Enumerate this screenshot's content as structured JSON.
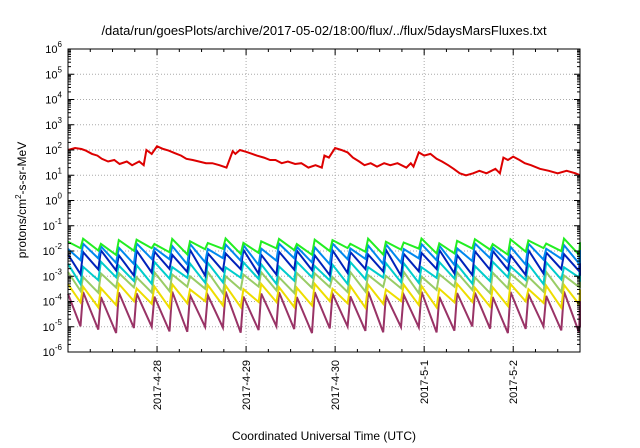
{
  "chart_data": {
    "type": "line",
    "title": "/data/run/goesPlots/archive/2017-05-02/18:00/flux/../flux/5daysMarsFluxes.txt",
    "xlabel": "Coordinated Universal Time (UTC)",
    "ylabel_parts": [
      "protons/cm",
      "2",
      "-s-sr-MeV"
    ],
    "yscale": "log",
    "ylim": [
      1e-06,
      1000000.0
    ],
    "xlim": [
      "2017-04-27 00:00",
      "2017-05-02 18:00"
    ],
    "x_ticks": [
      "2017-4-28",
      "2017-4-29",
      "2017-4-30",
      "2017-5-1",
      "2017-5-2"
    ],
    "y_ticks": [
      {
        "base": "10",
        "exp": "-6"
      },
      {
        "base": "10",
        "exp": "-5"
      },
      {
        "base": "10",
        "exp": "-4"
      },
      {
        "base": "10",
        "exp": "-3"
      },
      {
        "base": "10",
        "exp": "-2"
      },
      {
        "base": "10",
        "exp": "-1"
      },
      {
        "base": "10",
        "exp": "0"
      },
      {
        "base": "10",
        "exp": "1"
      },
      {
        "base": "10",
        "exp": "2"
      },
      {
        "base": "10",
        "exp": "3"
      },
      {
        "base": "10",
        "exp": "4"
      },
      {
        "base": "10",
        "exp": "5"
      },
      {
        "base": "10",
        "exp": "6"
      }
    ],
    "grid": true,
    "series": [
      {
        "color": "#dd0000",
        "x": [
          0,
          0.08,
          0.15,
          0.2,
          0.27,
          0.33,
          0.38,
          0.45,
          0.52,
          0.58,
          0.66,
          0.72,
          0.8,
          0.85,
          0.88,
          0.94,
          1.0,
          1.07,
          1.13,
          1.2,
          1.27,
          1.33,
          1.4,
          1.47,
          1.55,
          1.62,
          1.7,
          1.78,
          1.85,
          1.88,
          1.93,
          2.0,
          2.07,
          2.12,
          2.2,
          2.27,
          2.33,
          2.4,
          2.47,
          2.55,
          2.62,
          2.7,
          2.78,
          2.85,
          2.88,
          2.93,
          3.0,
          3.07,
          3.14,
          3.2,
          3.27,
          3.33,
          3.4,
          3.47,
          3.55,
          3.62,
          3.7,
          3.8,
          3.85,
          3.88,
          3.94,
          4.0,
          4.07,
          4.14,
          4.2,
          4.27,
          4.33,
          4.4,
          4.47,
          4.55,
          4.62,
          4.7,
          4.8,
          4.85,
          4.89,
          4.94,
          5.0,
          5.07,
          5.13,
          5.2,
          5.3,
          5.4,
          5.5,
          5.6,
          5.7,
          5.75
        ],
        "y": [
          100,
          120,
          110,
          95,
          70,
          60,
          45,
          35,
          40,
          28,
          35,
          25,
          35,
          25,
          100,
          70,
          140,
          110,
          95,
          75,
          60,
          45,
          40,
          35,
          30,
          30,
          25,
          20,
          90,
          70,
          100,
          85,
          70,
          60,
          50,
          40,
          40,
          30,
          35,
          28,
          30,
          20,
          25,
          20,
          60,
          50,
          120,
          100,
          80,
          50,
          35,
          25,
          30,
          22,
          30,
          25,
          30,
          20,
          30,
          22,
          80,
          60,
          70,
          45,
          35,
          25,
          18,
          12,
          10,
          12,
          15,
          12,
          18,
          12,
          50,
          40,
          55,
          40,
          30,
          25,
          18,
          15,
          12,
          15,
          12,
          10
        ]
      }
    ],
    "band_series": [
      {
        "color": "#22ee22",
        "peak": 0.025,
        "trough": 0.01
      },
      {
        "color": "#0088ee",
        "peak": 0.016,
        "trough": 0.004
      },
      {
        "color": "#0022bb",
        "peak": 0.009,
        "trough": 0.0015
      },
      {
        "color": "#00cccc",
        "peak": 0.003,
        "trough": 0.0007
      },
      {
        "color": "#99cc66",
        "peak": 0.0012,
        "trough": 0.0003
      },
      {
        "color": "#eedd00",
        "peak": 0.0004,
        "trough": 8e-05
      },
      {
        "color": "#993366",
        "peak": 0.0002,
        "trough": 8e-06
      }
    ],
    "band_cycles_per_day": 5
  }
}
